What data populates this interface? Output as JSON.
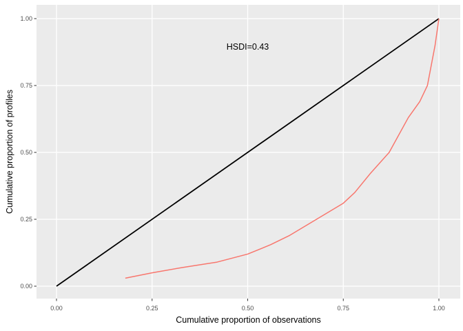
{
  "chart_data": {
    "type": "line",
    "title": "",
    "xlabel": "Cumulative proportion of observations",
    "ylabel": "Cumulative proportion of profiles",
    "xlim": [
      0,
      1
    ],
    "ylim": [
      0,
      1
    ],
    "grid": "major gridlines only, white on gray panel",
    "legend_position": "none",
    "panel_background": "#EBEBEB",
    "gridline_color": "#FFFFFF",
    "tick_mark_color": "#333333",
    "tick_label_color": "#4D4D4D",
    "x_ticks": [
      {
        "value": 0.0,
        "label": "0.00"
      },
      {
        "value": 0.25,
        "label": "0.25"
      },
      {
        "value": 0.5,
        "label": "0.50"
      },
      {
        "value": 0.75,
        "label": "0.75"
      },
      {
        "value": 1.0,
        "label": "1.00"
      }
    ],
    "y_ticks": [
      {
        "value": 0.0,
        "label": "0.00"
      },
      {
        "value": 0.25,
        "label": "0.25"
      },
      {
        "value": 0.5,
        "label": "0.50"
      },
      {
        "value": 0.75,
        "label": "0.75"
      },
      {
        "value": 1.0,
        "label": "1.00"
      }
    ],
    "annotation": {
      "text": "HSDI=0.43",
      "x": 0.5,
      "y": 0.895
    },
    "series": [
      {
        "name": "equality-line",
        "color": "#000000",
        "width": 1.8,
        "points": [
          [
            0,
            0
          ],
          [
            1,
            1
          ]
        ]
      },
      {
        "name": "concentration-curve",
        "color": "#F8766D",
        "width": 1.5,
        "points": [
          [
            0.18,
            0.03
          ],
          [
            0.25,
            0.05
          ],
          [
            0.33,
            0.07
          ],
          [
            0.42,
            0.09
          ],
          [
            0.5,
            0.12
          ],
          [
            0.56,
            0.155
          ],
          [
            0.61,
            0.19
          ],
          [
            0.68,
            0.25
          ],
          [
            0.75,
            0.31
          ],
          [
            0.78,
            0.35
          ],
          [
            0.82,
            0.42
          ],
          [
            0.87,
            0.5
          ],
          [
            0.92,
            0.63
          ],
          [
            0.95,
            0.69
          ],
          [
            0.97,
            0.75
          ],
          [
            0.99,
            0.9
          ],
          [
            1.0,
            1.0
          ]
        ]
      }
    ]
  }
}
